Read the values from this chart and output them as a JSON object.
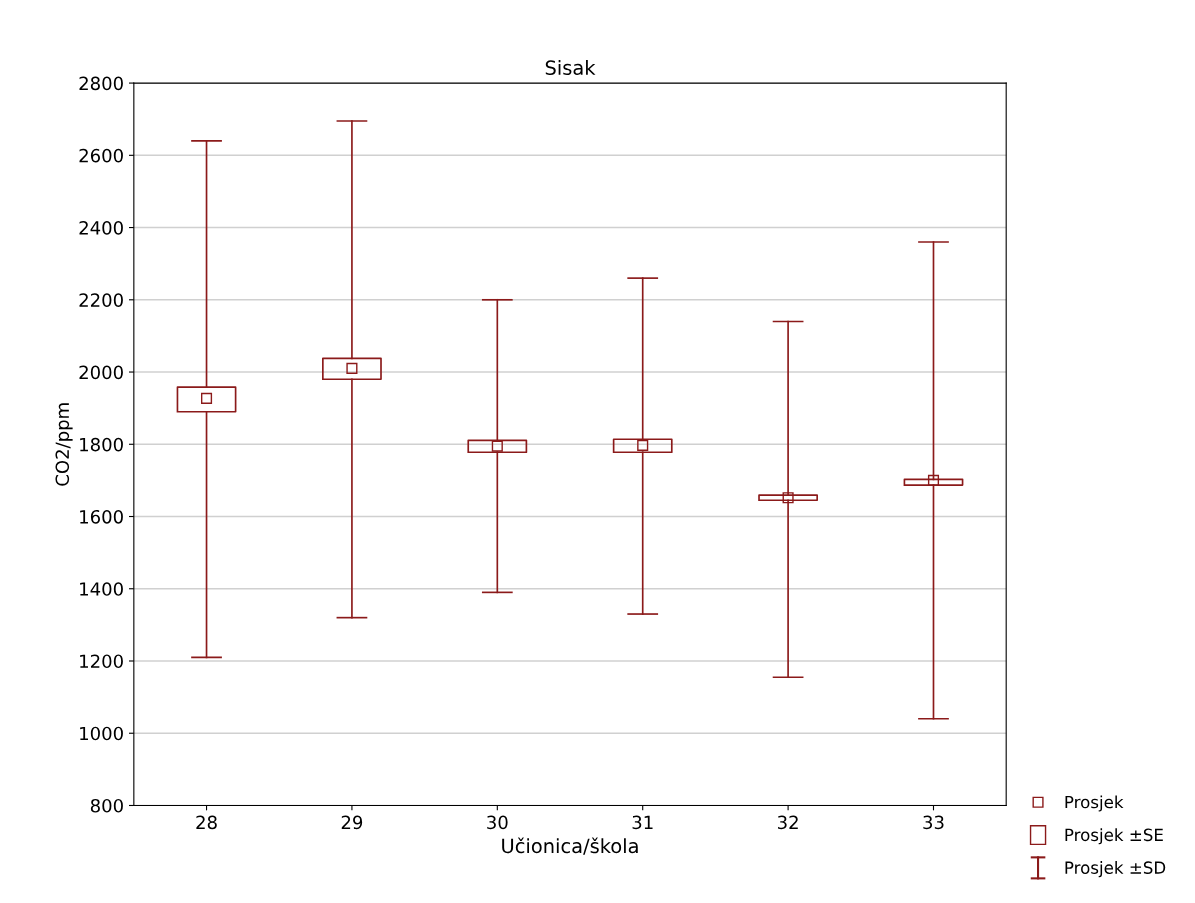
{
  "chart_data": {
    "type": "box",
    "title": "Sisak",
    "xlabel": "Učionica/škola",
    "ylabel": "CO2/ppm",
    "categories": [
      "28",
      "29",
      "30",
      "31",
      "32",
      "33"
    ],
    "series": [
      {
        "name": "Prosjek",
        "color": "#8b1a1a",
        "boxes": [
          {
            "low": 1210,
            "q1": 1890,
            "q3": 1958,
            "high": 2640,
            "mean": 1927
          },
          {
            "low": 1320,
            "q1": 1980,
            "q3": 2038,
            "high": 2695,
            "mean": 2010
          },
          {
            "low": 1390,
            "q1": 1778,
            "q3": 1811,
            "high": 2200,
            "mean": 1795
          },
          {
            "low": 1330,
            "q1": 1778,
            "q3": 1814,
            "high": 2260,
            "mean": 1797
          },
          {
            "low": 1155,
            "q1": 1645,
            "q3": 1659,
            "high": 2140,
            "mean": 1652
          },
          {
            "low": 1040,
            "q1": 1687,
            "q3": 1703,
            "high": 2360,
            "mean": 1700
          }
        ]
      }
    ],
    "annotations": [
      "Prosjek ±SE",
      "Prosjek ±SD"
    ],
    "ylim": [
      800,
      2800
    ],
    "yticks": [
      800,
      1000,
      1200,
      1400,
      1600,
      1800,
      2000,
      2200,
      2400,
      2600,
      2800
    ],
    "grid": "y",
    "legend": "bottom right",
    "marker": "square"
  }
}
